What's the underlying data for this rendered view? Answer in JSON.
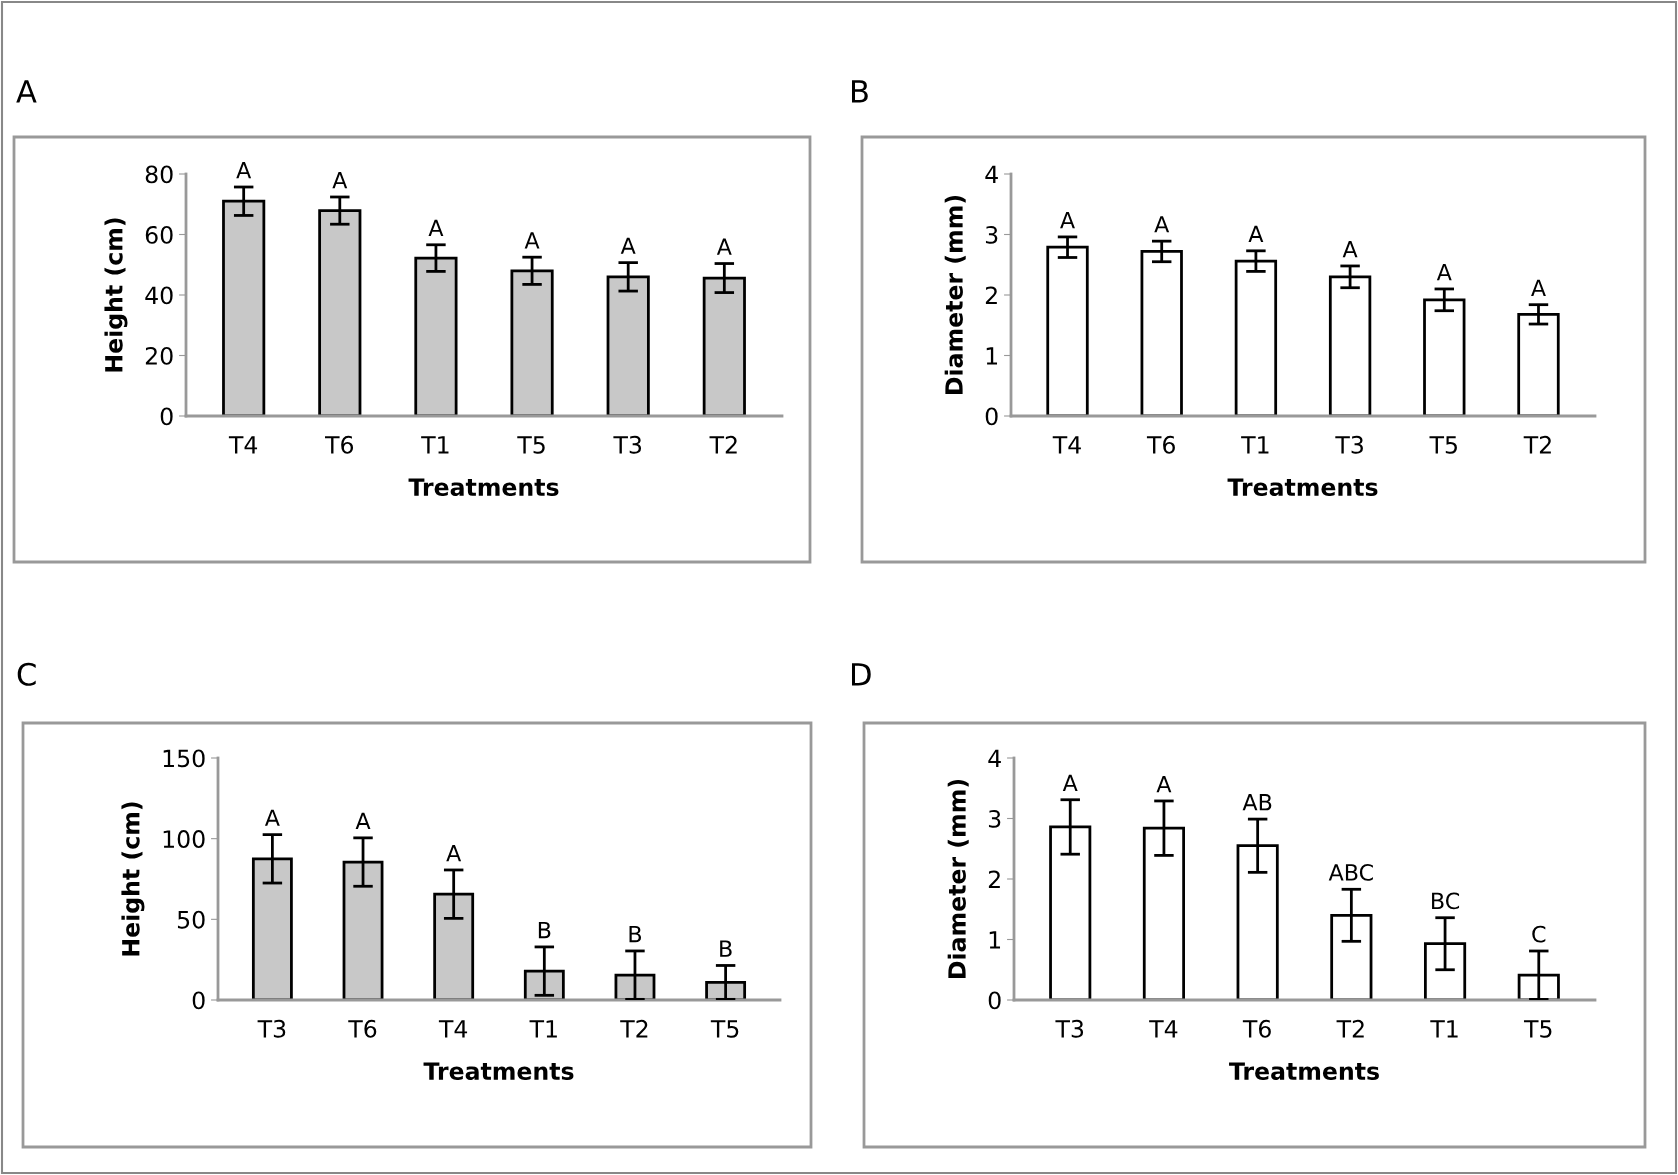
{
  "chart_data": [
    {
      "type": "bar",
      "title": "A",
      "xlabel": "Treatments",
      "ylabel": "Height (cm)",
      "categories": [
        "T4",
        "T6",
        "T1",
        "T5",
        "T3",
        "T2"
      ],
      "values": [
        71,
        67.9,
        52.2,
        48,
        46,
        45.6
      ],
      "errors": [
        4.7,
        4.5,
        4.4,
        4.5,
        4.7,
        4.8
      ],
      "color": "#c8c8c8",
      "ylim": [
        0,
        80
      ],
      "yticks": [
        0,
        20,
        40,
        60,
        80
      ],
      "grid": false,
      "legend": false,
      "annotations": [
        {
          "text": "A",
          "x": "T4",
          "y": 75.7
        },
        {
          "text": "A",
          "x": "T6",
          "y": 72.4
        },
        {
          "text": "A",
          "x": "T1",
          "y": 56.6
        },
        {
          "text": "A",
          "x": "T5",
          "y": 52.5
        },
        {
          "text": "A",
          "x": "T3",
          "y": 50.7
        },
        {
          "text": "A",
          "x": "T2",
          "y": 50.4
        }
      ]
    },
    {
      "type": "bar",
      "title": "B",
      "xlabel": "Treatments",
      "ylabel": "Diameter (mm)",
      "categories": [
        "T4",
        "T6",
        "T1",
        "T3",
        "T5",
        "T2"
      ],
      "values": [
        2.79,
        2.72,
        2.56,
        2.3,
        1.92,
        1.68
      ],
      "errors": [
        0.17,
        0.17,
        0.17,
        0.18,
        0.18,
        0.16
      ],
      "color": "#ffffff",
      "ylim": [
        0,
        4
      ],
      "yticks": [
        0,
        1,
        2,
        3,
        4
      ],
      "grid": false,
      "legend": false,
      "annotations": [
        {
          "text": "A",
          "x": "T4",
          "y": 2.96
        },
        {
          "text": "A",
          "x": "T6",
          "y": 2.89
        },
        {
          "text": "A",
          "x": "T1",
          "y": 2.73
        },
        {
          "text": "A",
          "x": "T3",
          "y": 2.48
        },
        {
          "text": "A",
          "x": "T5",
          "y": 2.1
        },
        {
          "text": "A",
          "x": "T2",
          "y": 1.84
        }
      ]
    },
    {
      "type": "bar",
      "title": "C",
      "xlabel": "Treatments",
      "ylabel": "Height (cm)",
      "categories": [
        "T3",
        "T6",
        "T4",
        "T1",
        "T2",
        "T5"
      ],
      "values": [
        87.5,
        85.5,
        65.6,
        17.9,
        15.4,
        10.9
      ],
      "errors": [
        15,
        15,
        15,
        15,
        15,
        10.5
      ],
      "color": "#c8c8c8",
      "ylim": [
        0,
        150
      ],
      "yticks": [
        0,
        50,
        100,
        150
      ],
      "grid": false,
      "legend": false,
      "annotations": [
        {
          "text": "A",
          "x": "T3",
          "y": 102.5
        },
        {
          "text": "A",
          "x": "T6",
          "y": 100.5
        },
        {
          "text": "A",
          "x": "T4",
          "y": 80.6
        },
        {
          "text": "B",
          "x": "T1",
          "y": 32.9
        },
        {
          "text": "B",
          "x": "T2",
          "y": 30.4
        },
        {
          "text": "B",
          "x": "T5",
          "y": 21.4
        }
      ]
    },
    {
      "type": "bar",
      "title": "D",
      "xlabel": "Treatments",
      "ylabel": "Diameter (mm)",
      "categories": [
        "T3",
        "T4",
        "T6",
        "T2",
        "T1",
        "T5"
      ],
      "values": [
        2.86,
        2.84,
        2.55,
        1.4,
        0.93,
        0.41
      ],
      "errors": [
        0.45,
        0.45,
        0.44,
        0.43,
        0.43,
        0.4
      ],
      "color": "#ffffff",
      "ylim": [
        0,
        4
      ],
      "yticks": [
        0,
        1,
        2,
        3,
        4
      ],
      "grid": false,
      "legend": false,
      "annotations": [
        {
          "text": "A",
          "x": "T3",
          "y": 3.31
        },
        {
          "text": "A",
          "x": "T4",
          "y": 3.29
        },
        {
          "text": "AB",
          "x": "T6",
          "y": 2.99
        },
        {
          "text": "ABC",
          "x": "T2",
          "y": 1.83
        },
        {
          "text": "BC",
          "x": "T1",
          "y": 1.36
        },
        {
          "text": "C",
          "x": "T5",
          "y": 0.81
        }
      ]
    }
  ]
}
